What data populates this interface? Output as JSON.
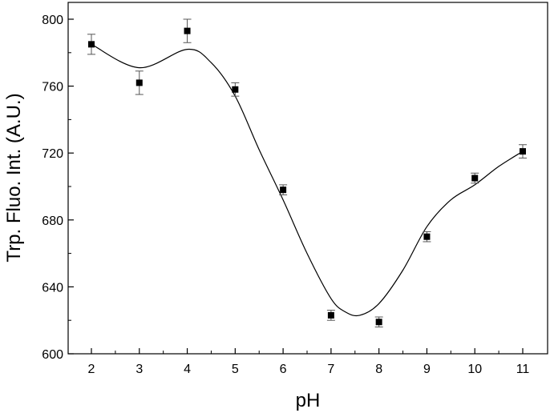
{
  "chart_data": {
    "type": "scatter",
    "xlabel": "pH",
    "ylabel": "Trp. Fluo. Int. (A.U.)",
    "xlim": [
      1.5,
      11.5
    ],
    "ylim": [
      600,
      815
    ],
    "x_ticks": [
      2,
      3,
      4,
      5,
      6,
      7,
      8,
      9,
      10,
      11
    ],
    "y_ticks": [
      600,
      640,
      680,
      720,
      760,
      800
    ],
    "grid": false,
    "legend": "none",
    "marker": "square",
    "color": "#000000",
    "series": [
      {
        "x": [
          2,
          3,
          4,
          5,
          6,
          7,
          8,
          9,
          10,
          11
        ],
        "y": [
          785,
          762,
          793,
          758,
          698,
          623,
          619,
          670,
          705,
          721
        ],
        "error": [
          6,
          7,
          7,
          4,
          3,
          3,
          3,
          3,
          3,
          4
        ]
      }
    ],
    "fit_curve": {
      "x": [
        2,
        3,
        4,
        4.5,
        5,
        5.5,
        6,
        6.5,
        7,
        7.3,
        7.6,
        8,
        8.5,
        9,
        9.5,
        10,
        10.5,
        11
      ],
      "y": [
        785,
        771,
        782,
        774,
        754,
        722,
        692,
        660,
        633,
        625,
        623,
        630,
        650,
        676,
        692,
        701,
        712,
        721
      ]
    }
  }
}
